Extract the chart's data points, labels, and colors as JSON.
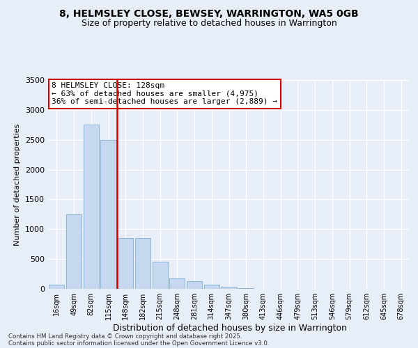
{
  "title": "8, HELMSLEY CLOSE, BEWSEY, WARRINGTON, WA5 0GB",
  "subtitle": "Size of property relative to detached houses in Warrington",
  "xlabel": "Distribution of detached houses by size in Warrington",
  "ylabel": "Number of detached properties",
  "bar_color": "#c5d8f0",
  "bar_edge_color": "#8ab4d8",
  "vline_color": "#cc0000",
  "vline_x_index": 3.5,
  "annotation_text": "8 HELMSLEY CLOSE: 128sqm\n← 63% of detached houses are smaller (4,975)\n36% of semi-detached houses are larger (2,889) →",
  "annotation_box_color": "#ffffff",
  "annotation_box_edge": "#cc0000",
  "categories": [
    "16sqm",
    "49sqm",
    "82sqm",
    "115sqm",
    "148sqm",
    "182sqm",
    "215sqm",
    "248sqm",
    "281sqm",
    "314sqm",
    "347sqm",
    "380sqm",
    "413sqm",
    "446sqm",
    "479sqm",
    "513sqm",
    "546sqm",
    "579sqm",
    "612sqm",
    "645sqm",
    "678sqm"
  ],
  "values": [
    75,
    1250,
    2750,
    2500,
    850,
    850,
    450,
    170,
    130,
    70,
    30,
    15,
    5,
    2,
    1,
    0,
    0,
    0,
    0,
    0,
    0
  ],
  "ylim": [
    0,
    3500
  ],
  "yticks": [
    0,
    500,
    1000,
    1500,
    2000,
    2500,
    3000,
    3500
  ],
  "footer_line1": "Contains HM Land Registry data © Crown copyright and database right 2025.",
  "footer_line2": "Contains public sector information licensed under the Open Government Licence v3.0.",
  "bg_color": "#e8eef8",
  "plot_bg_color": "#e8eef8"
}
